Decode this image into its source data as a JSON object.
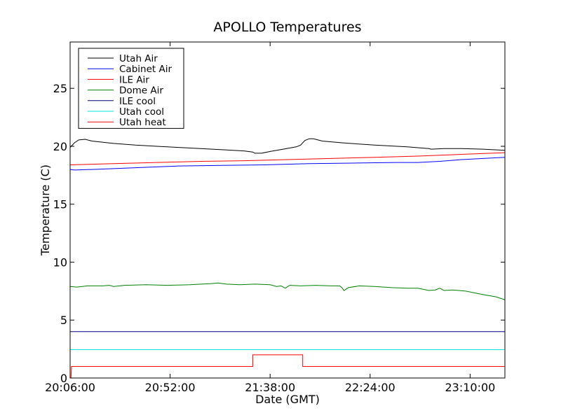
{
  "chart_data": {
    "type": "line",
    "title": "APOLLO Temperatures",
    "xlabel": "Date (GMT)",
    "ylabel": "Temperature (C)",
    "xlim_minutes": [
      0,
      200
    ],
    "ylim": [
      0,
      29
    ],
    "x_ticks": [
      {
        "minute": 0,
        "label": "20:06:00"
      },
      {
        "minute": 46,
        "label": "20:52:00"
      },
      {
        "minute": 92,
        "label": "21:38:00"
      },
      {
        "minute": 138,
        "label": "22:24:00"
      },
      {
        "minute": 184,
        "label": "23:10:00"
      }
    ],
    "y_ticks": [
      {
        "value": 0,
        "label": "0"
      },
      {
        "value": 5,
        "label": "5"
      },
      {
        "value": 10,
        "label": "10"
      },
      {
        "value": 15,
        "label": "15"
      },
      {
        "value": 20,
        "label": "20"
      },
      {
        "value": 25,
        "label": "25"
      }
    ],
    "legend_position": "top-left",
    "series": [
      {
        "name": "Utah Air",
        "color": "#000000",
        "points": [
          [
            0,
            19.9
          ],
          [
            2,
            20.3
          ],
          [
            4,
            20.55
          ],
          [
            7,
            20.6
          ],
          [
            10,
            20.45
          ],
          [
            20,
            20.25
          ],
          [
            30,
            20.1
          ],
          [
            40,
            20.0
          ],
          [
            50,
            19.9
          ],
          [
            60,
            19.8
          ],
          [
            70,
            19.7
          ],
          [
            80,
            19.6
          ],
          [
            84,
            19.5
          ],
          [
            85,
            19.4
          ],
          [
            88,
            19.4
          ],
          [
            92,
            19.55
          ],
          [
            98,
            19.75
          ],
          [
            104,
            19.95
          ],
          [
            106,
            20.1
          ],
          [
            108,
            20.5
          ],
          [
            110,
            20.65
          ],
          [
            112,
            20.65
          ],
          [
            116,
            20.45
          ],
          [
            125,
            20.3
          ],
          [
            140,
            20.1
          ],
          [
            155,
            19.95
          ],
          [
            165,
            19.8
          ],
          [
            166,
            19.75
          ],
          [
            172,
            19.8
          ],
          [
            180,
            19.8
          ],
          [
            190,
            19.75
          ],
          [
            200,
            19.65
          ]
        ]
      },
      {
        "name": "Cabinet Air",
        "color": "#0000ff",
        "points": [
          [
            0,
            18.0
          ],
          [
            2,
            17.95
          ],
          [
            10,
            18.0
          ],
          [
            30,
            18.15
          ],
          [
            50,
            18.3
          ],
          [
            70,
            18.35
          ],
          [
            90,
            18.4
          ],
          [
            110,
            18.5
          ],
          [
            130,
            18.55
          ],
          [
            150,
            18.6
          ],
          [
            160,
            18.6
          ],
          [
            170,
            18.7
          ],
          [
            180,
            18.85
          ],
          [
            190,
            18.95
          ],
          [
            200,
            19.05
          ]
        ]
      },
      {
        "name": "ILE Air",
        "color": "#ff0000",
        "points": [
          [
            0,
            18.4
          ],
          [
            20,
            18.5
          ],
          [
            40,
            18.6
          ],
          [
            60,
            18.7
          ],
          [
            80,
            18.75
          ],
          [
            100,
            18.85
          ],
          [
            120,
            18.95
          ],
          [
            140,
            19.05
          ],
          [
            160,
            19.15
          ],
          [
            180,
            19.3
          ],
          [
            200,
            19.45
          ]
        ]
      },
      {
        "name": "Dome Air",
        "color": "#008000",
        "points": [
          [
            0,
            7.9
          ],
          [
            3,
            7.85
          ],
          [
            8,
            7.95
          ],
          [
            15,
            7.95
          ],
          [
            18,
            8.0
          ],
          [
            20,
            7.9
          ],
          [
            25,
            8.0
          ],
          [
            35,
            8.05
          ],
          [
            45,
            8.0
          ],
          [
            55,
            8.05
          ],
          [
            65,
            8.15
          ],
          [
            68,
            8.2
          ],
          [
            72,
            8.1
          ],
          [
            78,
            8.05
          ],
          [
            85,
            8.1
          ],
          [
            92,
            8.05
          ],
          [
            95,
            7.9
          ],
          [
            97,
            7.95
          ],
          [
            99,
            7.75
          ],
          [
            101,
            8.0
          ],
          [
            106,
            7.95
          ],
          [
            113,
            8.0
          ],
          [
            120,
            7.95
          ],
          [
            124,
            7.95
          ],
          [
            125,
            7.8
          ],
          [
            126,
            7.55
          ],
          [
            128,
            7.8
          ],
          [
            133,
            7.95
          ],
          [
            140,
            7.9
          ],
          [
            148,
            7.8
          ],
          [
            155,
            7.75
          ],
          [
            160,
            7.75
          ],
          [
            165,
            7.55
          ],
          [
            168,
            7.6
          ],
          [
            170,
            7.75
          ],
          [
            172,
            7.55
          ],
          [
            176,
            7.6
          ],
          [
            182,
            7.5
          ],
          [
            190,
            7.2
          ],
          [
            196,
            7.0
          ],
          [
            200,
            6.75
          ]
        ]
      },
      {
        "name": "ILE cool",
        "color": "#000080",
        "points": [
          [
            0,
            4.0
          ],
          [
            200,
            4.0
          ]
        ]
      },
      {
        "name": "Utah cool",
        "color": "#00e5e5",
        "points": [
          [
            0,
            2.45
          ],
          [
            200,
            2.45
          ]
        ]
      },
      {
        "name": "Utah heat",
        "color": "#ff0000",
        "points": [
          [
            0.4,
            0.0
          ],
          [
            0.6,
            1.0
          ],
          [
            84,
            1.0
          ],
          [
            84,
            2.0
          ],
          [
            107,
            2.0
          ],
          [
            107,
            1.0
          ],
          [
            200,
            1.0
          ]
        ]
      }
    ]
  }
}
